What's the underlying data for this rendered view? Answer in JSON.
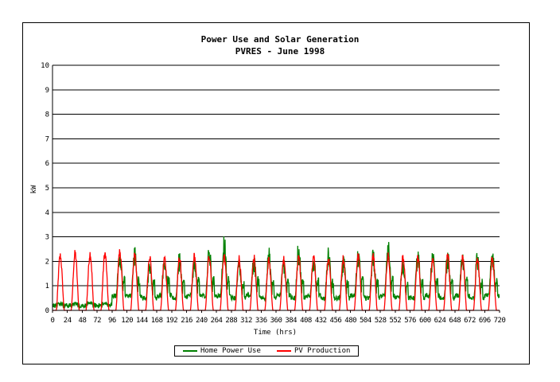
{
  "chart_data": {
    "type": "line",
    "title": "Power Use and Solar Generation",
    "subtitle": "PVRES - June 1998",
    "xlabel": "Time (hrs)",
    "ylabel": "kW",
    "xlim": [
      0,
      720
    ],
    "ylim": [
      0,
      10
    ],
    "x_ticks": [
      "0",
      "24",
      "48",
      "72",
      "96",
      "120",
      "144",
      "168",
      "192",
      "216",
      "240",
      "264",
      "288",
      "312",
      "336",
      "360",
      "384",
      "408",
      "432",
      "456",
      "480",
      "504",
      "528",
      "552",
      "576",
      "600",
      "624",
      "648",
      "672",
      "696",
      "720"
    ],
    "y_ticks": [
      "0",
      "1",
      "2",
      "3",
      "4",
      "5",
      "6",
      "7",
      "8",
      "9",
      "10"
    ],
    "grid": "horizontal",
    "legend_position": "bottom",
    "series": [
      {
        "name": "Home Power Use",
        "color": "#008000",
        "daily_peak_kw": [
          0.4,
          0.4,
          0.4,
          0.4,
          2.8,
          2.7,
          2.0,
          2.3,
          2.4,
          2.2,
          2.7,
          3.2,
          2.2,
          2.3,
          2.6,
          2.2,
          2.9,
          2.4,
          2.8,
          2.3,
          2.6,
          2.7,
          3.1,
          2.2,
          2.6,
          2.5,
          2.5,
          2.4,
          2.5,
          2.6
        ],
        "daily_base_kw": [
          0.2,
          0.2,
          0.2,
          0.2,
          0.6,
          0.6,
          0.5,
          0.6,
          0.5,
          0.6,
          0.6,
          0.6,
          0.5,
          0.6,
          0.5,
          0.6,
          0.5,
          0.6,
          0.5,
          0.5,
          0.6,
          0.5,
          0.6,
          0.5,
          0.5,
          0.6,
          0.5,
          0.6,
          0.5,
          0.6
        ]
      },
      {
        "name": "PV Production",
        "color": "#ff0000",
        "daily_peak_kw": [
          2.4,
          2.5,
          2.5,
          2.5,
          2.6,
          2.5,
          2.4,
          2.3,
          2.3,
          2.4,
          2.4,
          2.4,
          2.3,
          2.3,
          2.3,
          2.3,
          2.4,
          2.3,
          2.3,
          2.3,
          2.4,
          2.4,
          2.4,
          2.3,
          2.3,
          2.3,
          2.4,
          2.3,
          2.3,
          2.3
        ]
      }
    ]
  }
}
